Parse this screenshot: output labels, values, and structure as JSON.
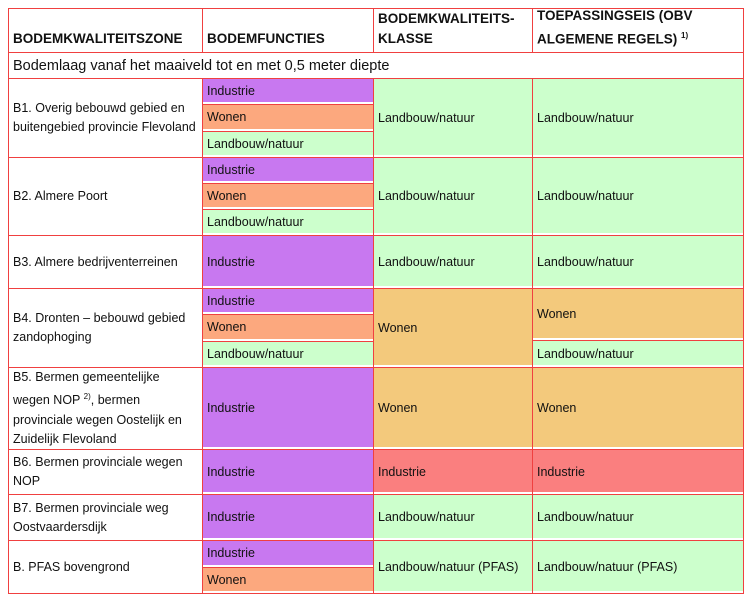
{
  "colors": {
    "industrie": "#c878f0",
    "wonen_functie": "#fca87e",
    "landbouw": "#ccffcc",
    "wonen_klasse": "#f3c97c",
    "industrie_klasse": "#fa7f7f",
    "border": "#f04040"
  },
  "headers": {
    "zone": "BODEMKWALITEITSZONE",
    "functies": "BODEMFUNCTIES",
    "klasse": "BODEMKWALITEITS-KLASSE",
    "eis": "TOEPASSINGSEIS (OBV ALGEMENE REGELS)",
    "eis_sup": "1)"
  },
  "section_label": "Bodemlaag vanaf het maaiveld tot en met 0,5 meter diepte",
  "rows": [
    {
      "zone": "B1. Overig bebouwd gebied en buitengebied provincie Flevoland",
      "functies": [
        {
          "t": "Industrie",
          "k": "industrie"
        },
        {
          "t": "Wonen",
          "k": "wonen_functie"
        },
        {
          "t": "Landbouw/natuur",
          "k": "landbouw"
        }
      ],
      "klasse": [
        {
          "t": "Landbouw/natuur",
          "k": "landbouw"
        }
      ],
      "eis": [
        {
          "t": "Landbouw/natuur",
          "k": "landbouw"
        }
      ]
    },
    {
      "zone": "B2. Almere Poort",
      "functies": [
        {
          "t": "Industrie",
          "k": "industrie"
        },
        {
          "t": "Wonen",
          "k": "wonen_functie"
        },
        {
          "t": "Landbouw/natuur",
          "k": "landbouw"
        }
      ],
      "klasse": [
        {
          "t": "Landbouw/natuur",
          "k": "landbouw"
        }
      ],
      "eis": [
        {
          "t": "Landbouw/natuur",
          "k": "landbouw"
        }
      ]
    },
    {
      "zone": "B3. Almere bedrijventerreinen",
      "functies": [
        {
          "t": "Industrie",
          "k": "industrie"
        }
      ],
      "klasse": [
        {
          "t": "Landbouw/natuur",
          "k": "landbouw"
        }
      ],
      "eis": [
        {
          "t": "Landbouw/natuur",
          "k": "landbouw"
        }
      ]
    },
    {
      "zone": "B4. Dronten – bebouwd gebied zandophoging",
      "functies": [
        {
          "t": "Industrie",
          "k": "industrie"
        },
        {
          "t": "Wonen",
          "k": "wonen_functie"
        },
        {
          "t": "Landbouw/natuur",
          "k": "landbouw"
        }
      ],
      "klasse": [
        {
          "t": "Wonen",
          "k": "wonen_klasse"
        }
      ],
      "eis": [
        {
          "t": "Wonen",
          "k": "wonen_klasse"
        },
        {
          "t": "Landbouw/natuur",
          "k": "landbouw"
        }
      ]
    },
    {
      "zone": "B5. Bermen gemeentelijke wegen NOP",
      "zone_sup": "2)",
      "zone_rest": ", bermen provinciale wegen Oostelijk en Zuidelijk Flevoland",
      "functies": [
        {
          "t": "Industrie",
          "k": "industrie"
        }
      ],
      "klasse": [
        {
          "t": "Wonen",
          "k": "wonen_klasse"
        }
      ],
      "eis": [
        {
          "t": "Wonen",
          "k": "wonen_klasse"
        }
      ]
    },
    {
      "zone": "B6. Bermen provinciale wegen NOP",
      "functies": [
        {
          "t": "Industrie",
          "k": "industrie"
        }
      ],
      "klasse": [
        {
          "t": "Industrie",
          "k": "industrie_klasse"
        }
      ],
      "eis": [
        {
          "t": "Industrie",
          "k": "industrie_klasse"
        }
      ]
    },
    {
      "zone": "B7. Bermen provinciale weg Oostvaardersdijk",
      "functies": [
        {
          "t": "Industrie",
          "k": "industrie"
        }
      ],
      "klasse": [
        {
          "t": "Landbouw/natuur",
          "k": "landbouw"
        }
      ],
      "eis": [
        {
          "t": "Landbouw/natuur",
          "k": "landbouw"
        }
      ]
    },
    {
      "zone": "B. PFAS bovengrond",
      "functies": [
        {
          "t": "Industrie",
          "k": "industrie"
        },
        {
          "t": "Wonen",
          "k": "wonen_functie"
        }
      ],
      "klasse": [
        {
          "t": "Landbouw/natuur (PFAS)",
          "k": "landbouw"
        }
      ],
      "eis": [
        {
          "t": "Landbouw/natuur (PFAS)",
          "k": "landbouw"
        }
      ]
    }
  ]
}
